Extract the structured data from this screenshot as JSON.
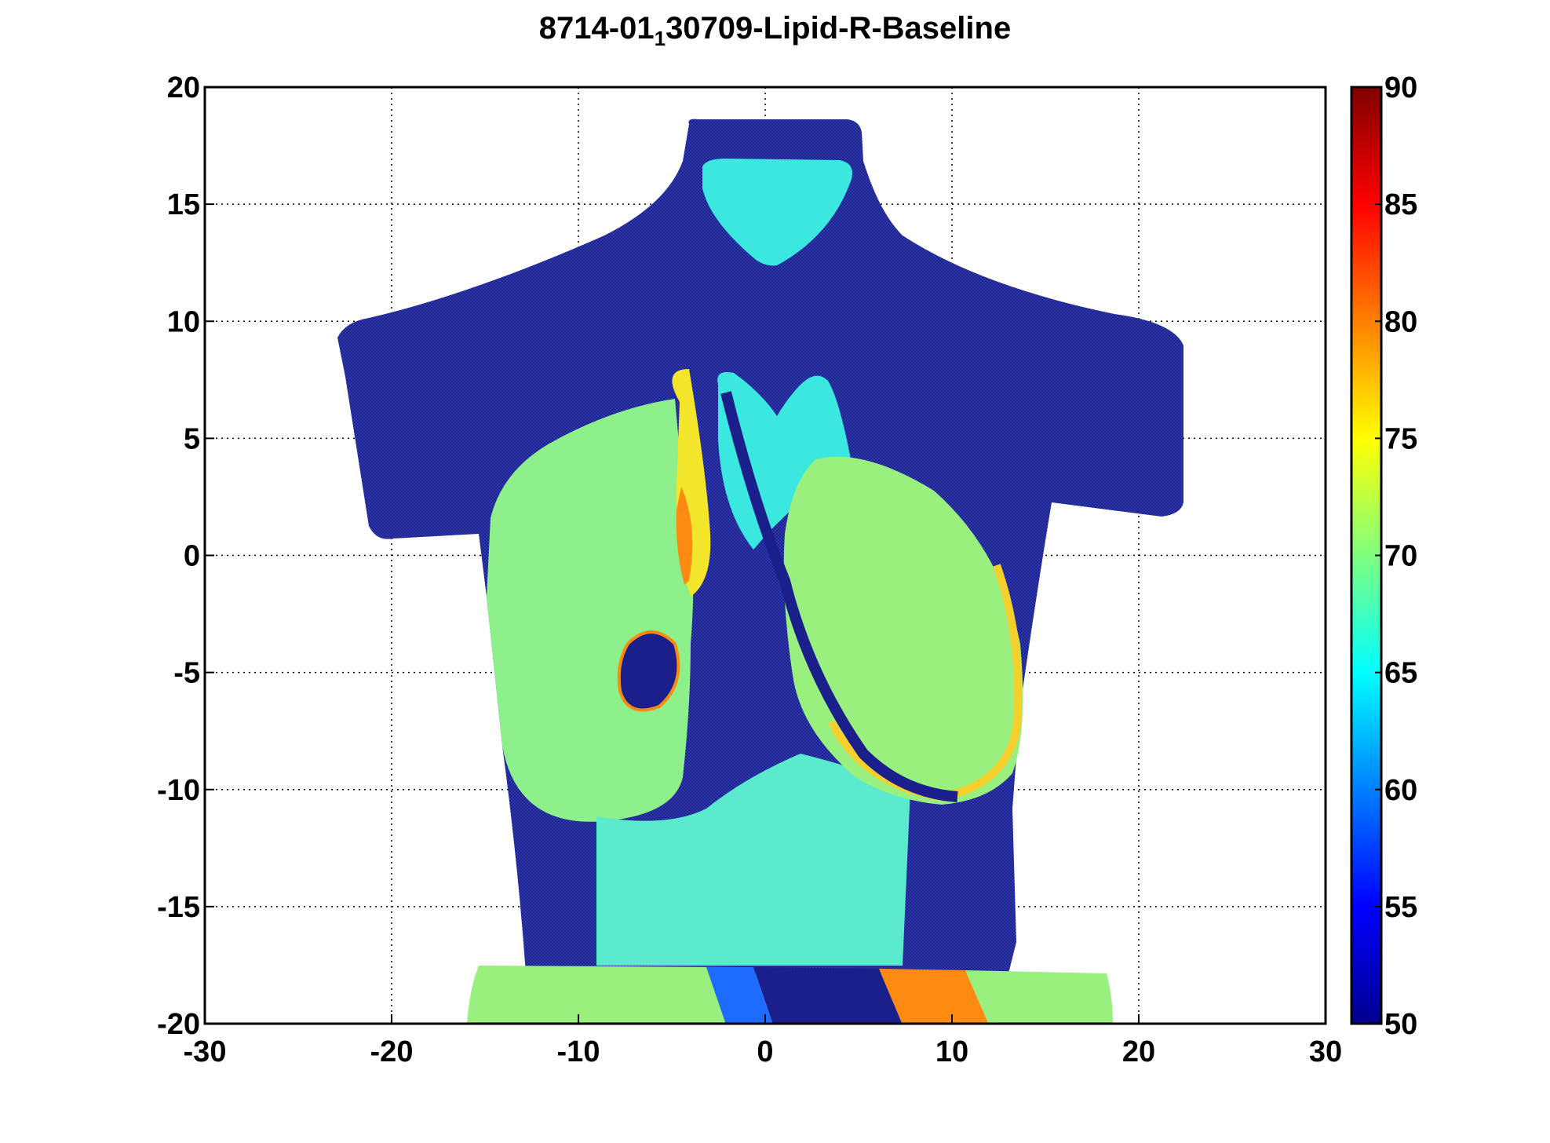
{
  "title": {
    "prefix": "8714-01",
    "subscript": "1",
    "suffix": "30709-Lipid-R-Baseline"
  },
  "chart_data": {
    "type": "heatmap",
    "title": "8714-01_130709-Lipid-R-Baseline",
    "xlabel": "",
    "ylabel": "",
    "xlim": [
      -30,
      30
    ],
    "ylim": [
      -20,
      20
    ],
    "x_ticks": [
      "-30",
      "-20",
      "-10",
      "0",
      "10",
      "20",
      "30"
    ],
    "y_ticks": [
      "20",
      "15",
      "10",
      "5",
      "0",
      "-5",
      "-10",
      "-15",
      "-20"
    ],
    "grid": true,
    "colormap": "jet",
    "colorbar": {
      "range": [
        50,
        90
      ],
      "ticks": [
        "90",
        "85",
        "80",
        "75",
        "70",
        "65",
        "60",
        "55",
        "50"
      ]
    },
    "regions": [
      {
        "name": "torso surface (background)",
        "value": 50
      },
      {
        "name": "neck front",
        "value": 65
      },
      {
        "name": "right breast",
        "value": 68
      },
      {
        "name": "right breast inner edge",
        "value": 78
      },
      {
        "name": "right areola spot",
        "value": 52
      },
      {
        "name": "left breast",
        "value": 70
      },
      {
        "name": "left breast rim",
        "value": 77
      },
      {
        "name": "upper chest between breasts",
        "value": 64
      },
      {
        "name": "abdomen",
        "value": 66
      },
      {
        "name": "waistband left",
        "value": 68
      },
      {
        "name": "waistband center",
        "value": 60
      },
      {
        "name": "waistband right",
        "value": 82
      }
    ],
    "colors": {
      "v50": "#1a1f8c",
      "v60": "#1e6cff",
      "v65": "#33e8e0",
      "v70": "#8cf08c",
      "v75": "#f0f02a",
      "v80": "#ff8a12",
      "v85": "#ff2a10",
      "v90": "#8a0000"
    }
  }
}
